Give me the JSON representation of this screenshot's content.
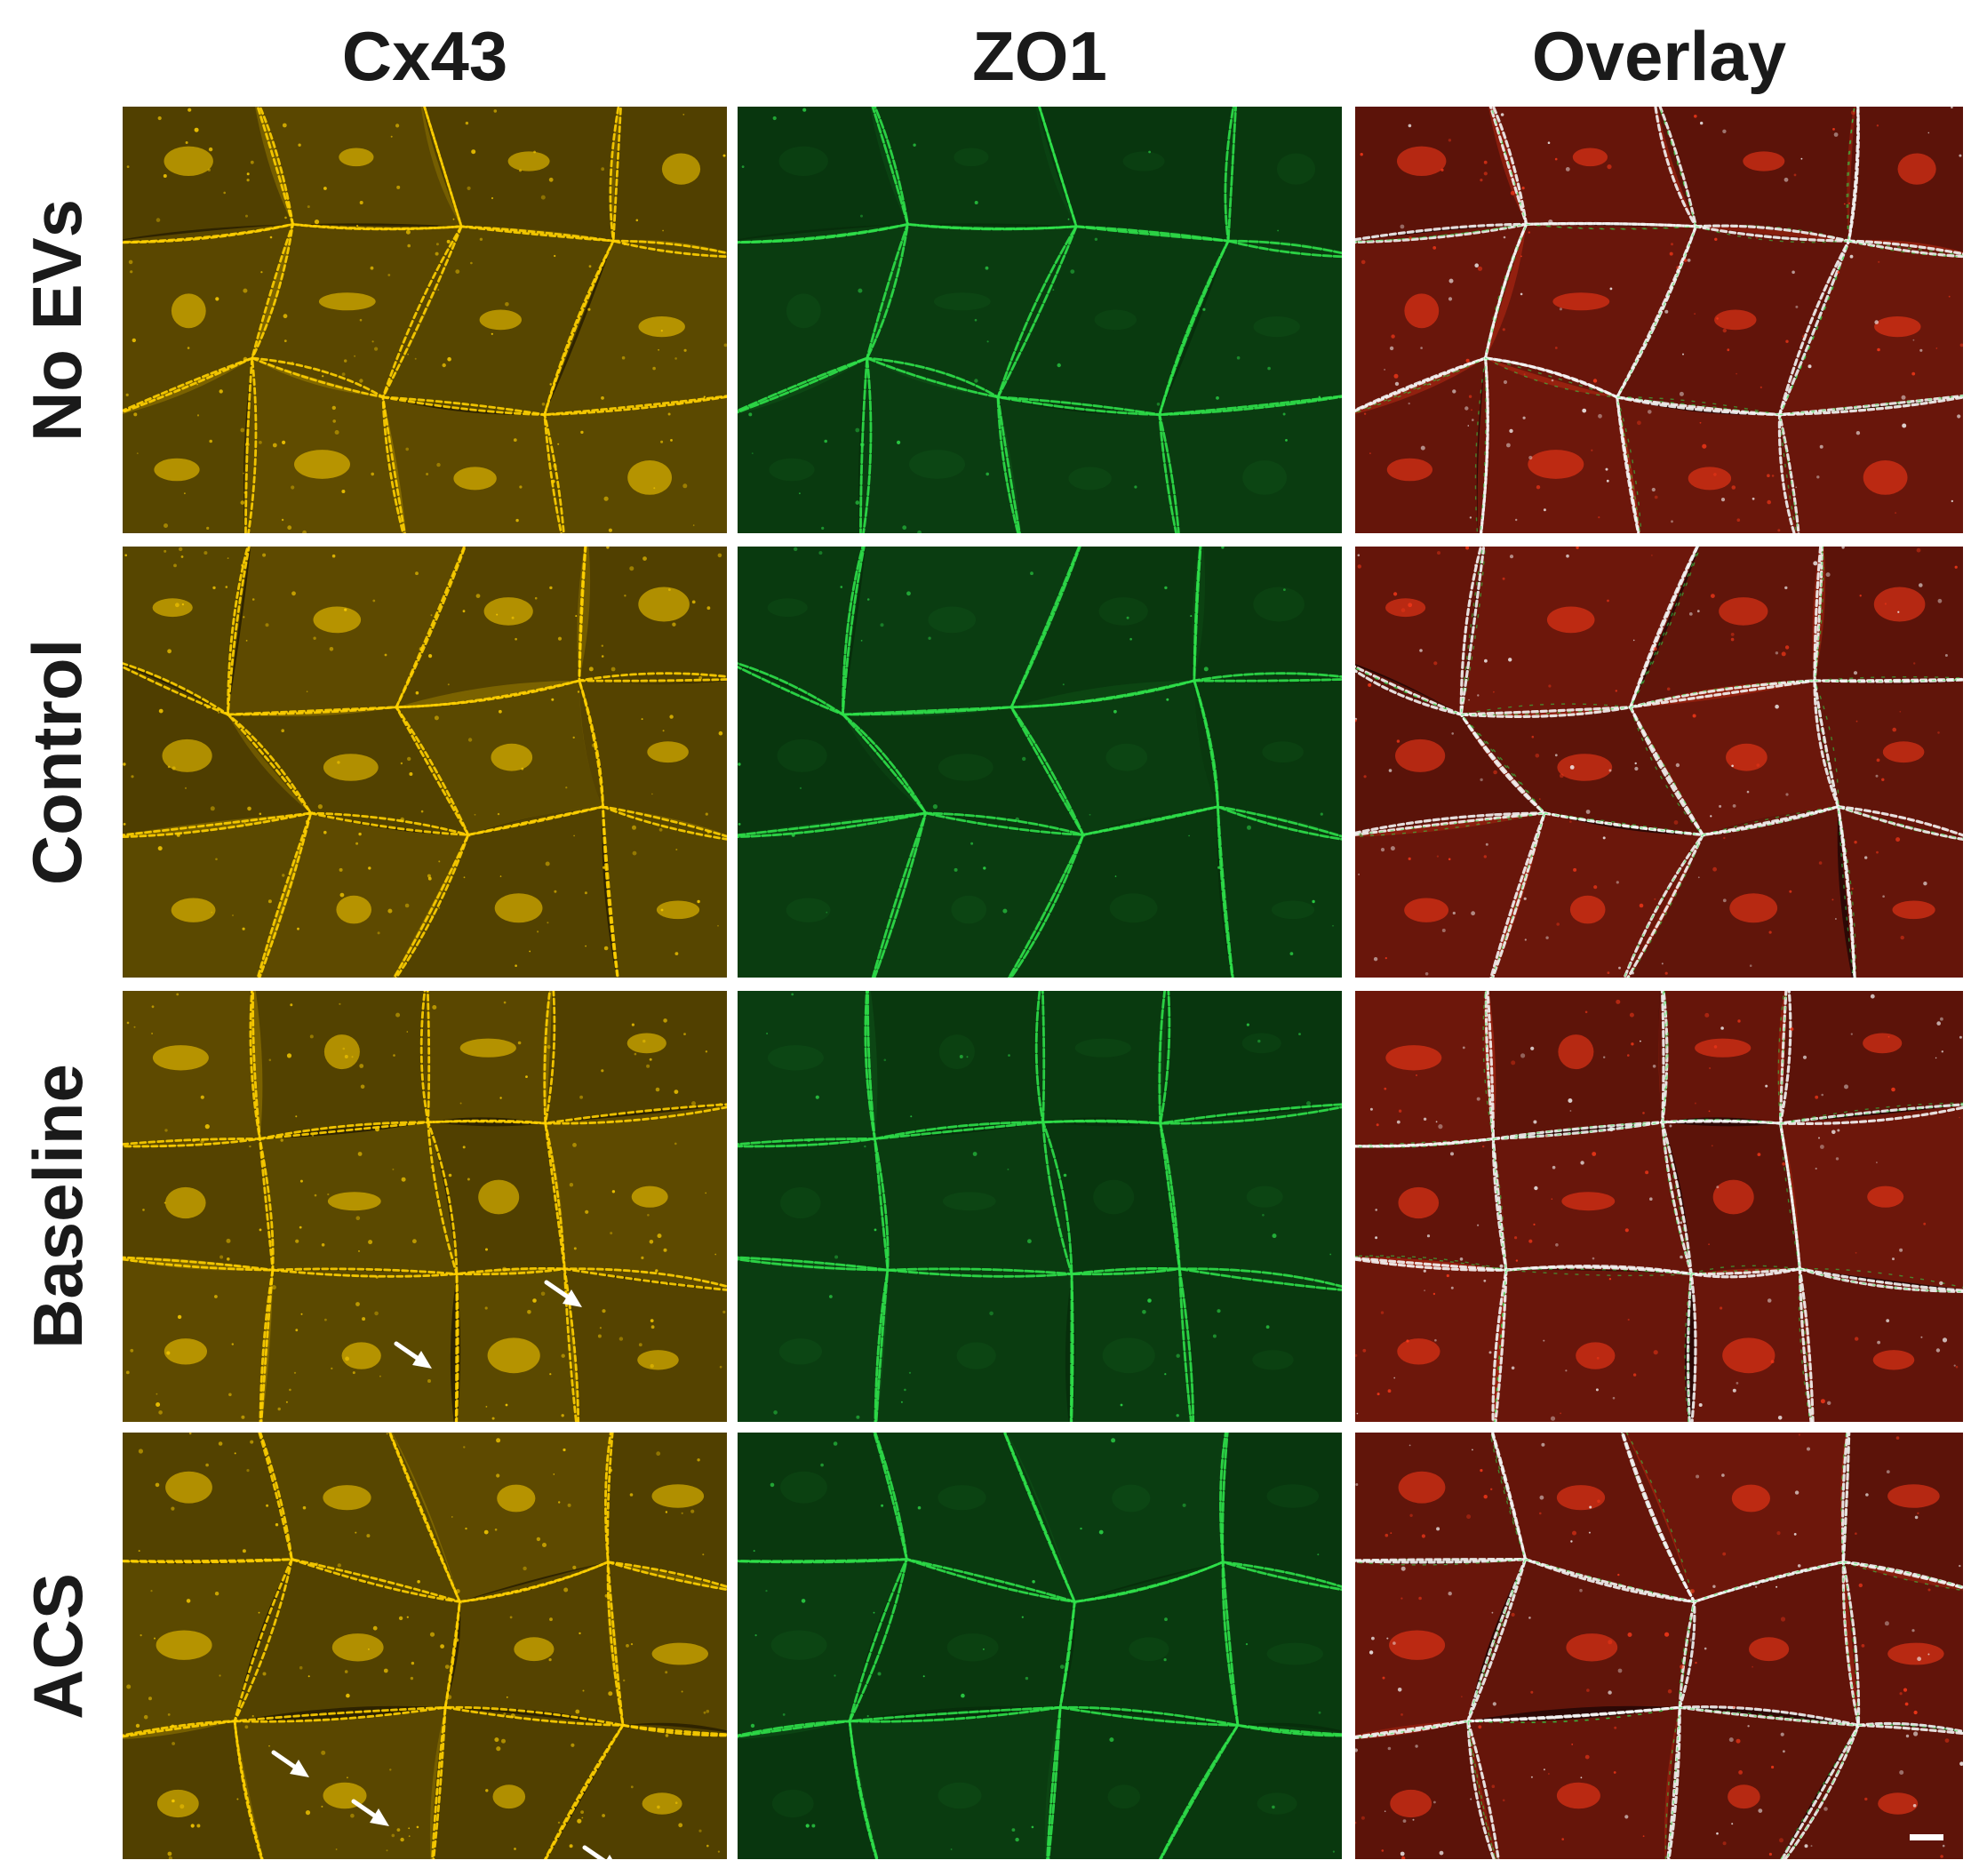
{
  "columns": [
    "Cx43",
    "ZO1",
    "Overlay"
  ],
  "rows": [
    "No EVs",
    "Control",
    "Baseline",
    "ACS"
  ],
  "colors": {
    "cx43_background": "#2e2300",
    "cx43_signal": "#ffd000",
    "zo1_background": "#072e0b",
    "zo1_signal": "#2fe04a",
    "overlay_background": "#2c0805",
    "overlay_cytoplasm": "#ff3a1a",
    "overlay_junction": "#f4f4f4",
    "arrow": "#ffffff",
    "scale_bar": "#ffffff"
  },
  "panels": {
    "cx43": {
      "icon": "cx43-immunofluorescence-image"
    },
    "zo1": {
      "icon": "zo1-immunofluorescence-image"
    },
    "overlay": {
      "icon": "overlay-merged-image"
    }
  },
  "arrows_per_row": {
    "No EVs": 0,
    "Control": 0,
    "Baseline": 2,
    "ACS": 3
  },
  "scale_bar": {
    "icon": "scale-bar",
    "location": "bottom-right of ACS overlay panel"
  }
}
